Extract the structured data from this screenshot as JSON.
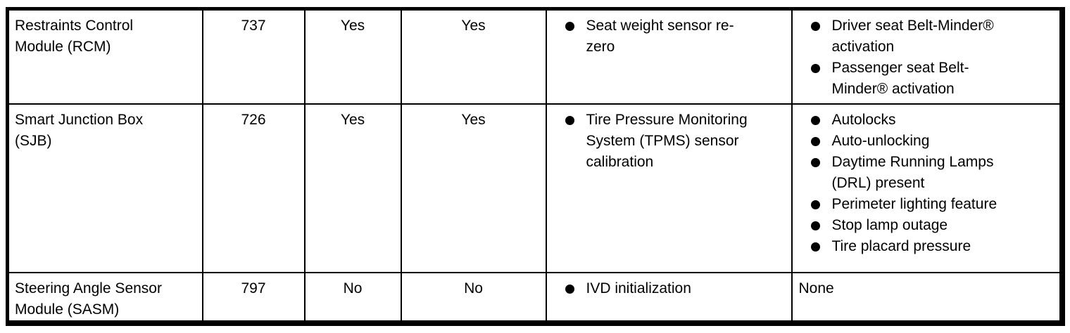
{
  "colors": {
    "text": "#000000",
    "border": "#000000",
    "background": "#ffffff"
  },
  "table": {
    "rows": [
      {
        "module": "Restraints Control Module (RCM)",
        "number": "737",
        "flag_a": "Yes",
        "flag_b": "Yes",
        "procedures": [
          "Seat weight sensor re-zero"
        ],
        "features": [
          "Driver seat Belt-Minder® activation",
          "Passenger seat Belt-Minder® activation"
        ]
      },
      {
        "module": "Smart Junction Box (SJB)",
        "number": "726",
        "flag_a": "Yes",
        "flag_b": "Yes",
        "procedures": [
          "Tire Pressure Monitoring System (TPMS) sensor calibration"
        ],
        "features": [
          "Autolocks",
          "Auto-unlocking",
          "Daytime Running Lamps (DRL) present",
          "Perimeter lighting feature",
          "Stop lamp outage",
          "Tire placard pressure"
        ]
      },
      {
        "module": "Steering Angle Sensor Module (SASM)",
        "number": "797",
        "flag_a": "No",
        "flag_b": "No",
        "procedures": [
          "IVD initialization"
        ],
        "features": "None"
      }
    ]
  }
}
